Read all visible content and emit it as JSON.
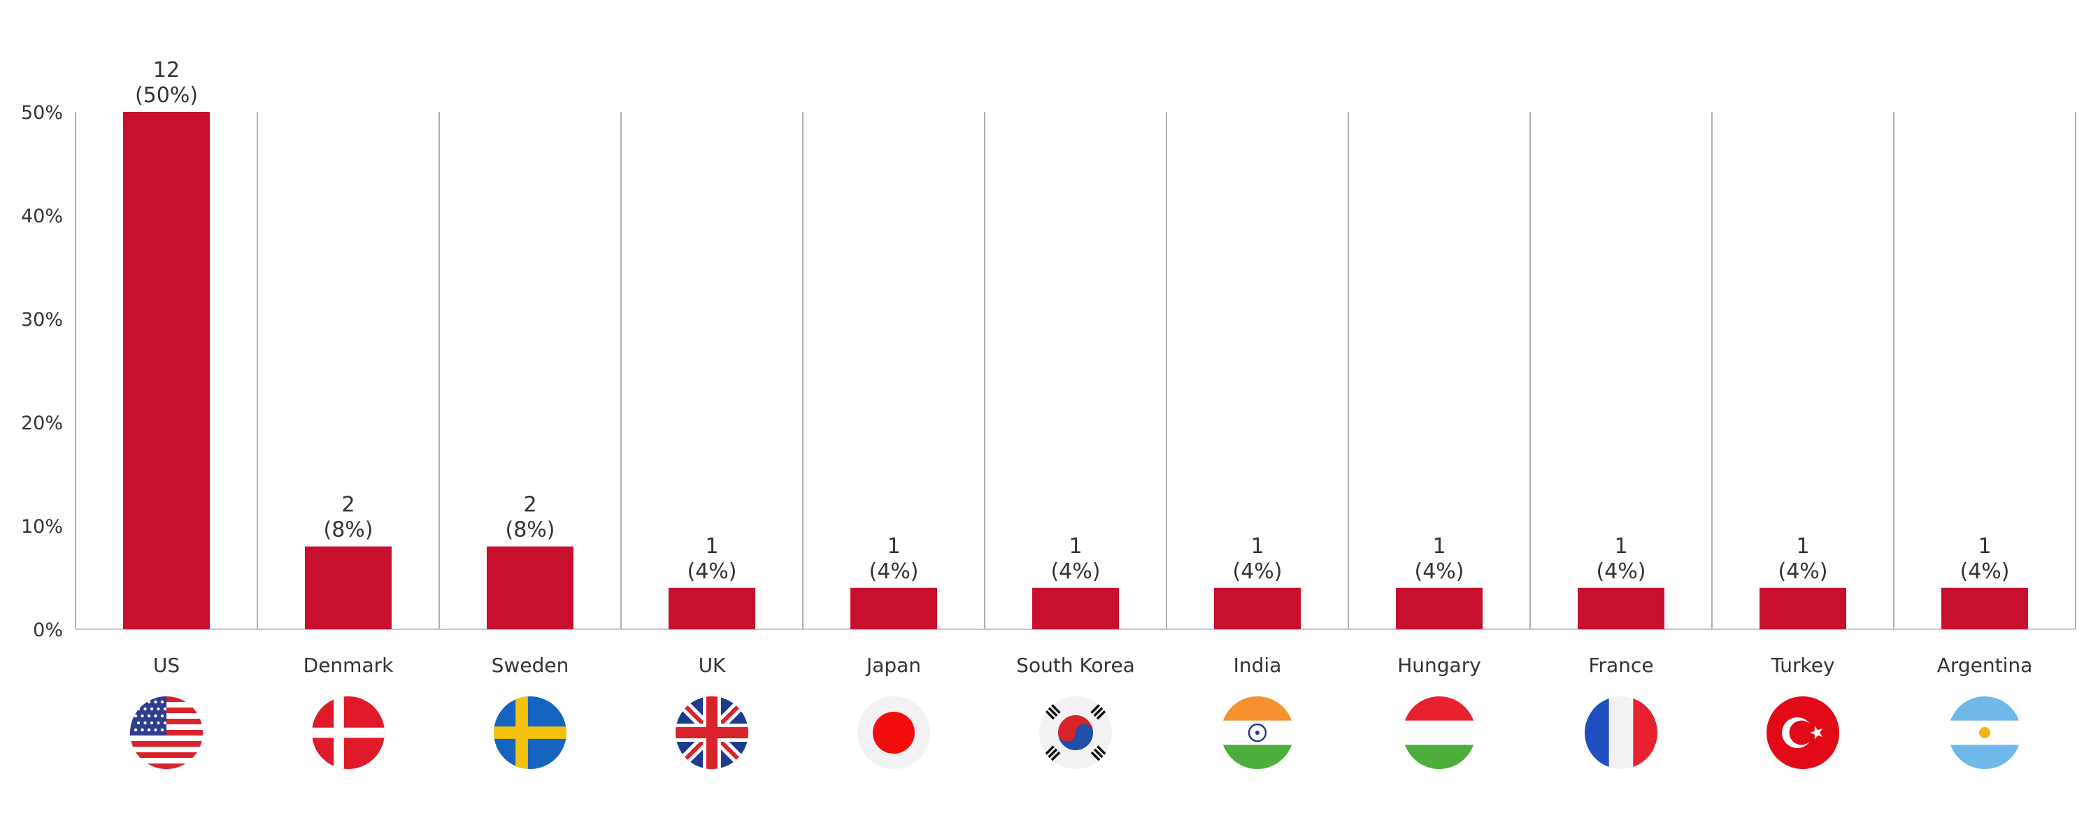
{
  "colors": {
    "bar": "#c8102e",
    "separator": "#b0b0b0",
    "axis": "#c4c4c4"
  },
  "chart_data": {
    "type": "bar",
    "title": "",
    "xlabel": "",
    "ylabel": "",
    "ylim": [
      0,
      50
    ],
    "yticks": [
      0,
      10,
      20,
      30,
      40,
      50
    ],
    "ytick_labels": [
      "0%",
      "10%",
      "20%",
      "30%",
      "40%",
      "50%"
    ],
    "grid": false,
    "categories": [
      "US",
      "Denmark",
      "Sweden",
      "UK",
      "Japan",
      "South Korea",
      "India",
      "Hungary",
      "France",
      "Turkey",
      "Argentina"
    ],
    "values": [
      50,
      8,
      8,
      4,
      4,
      4,
      4,
      4,
      4,
      4,
      4
    ],
    "counts": [
      "12",
      "2",
      "2",
      "1",
      "1",
      "1",
      "1",
      "1",
      "1",
      "1",
      "1"
    ],
    "percent_labels": [
      "(50%)",
      "(8%)",
      "(8%)",
      "(4%)",
      "(4%)",
      "(4%)",
      "(4%)",
      "(4%)",
      "(4%)",
      "(4%)",
      "(4%)"
    ],
    "flag_icons": [
      "us-flag-icon",
      "denmark-flag-icon",
      "sweden-flag-icon",
      "uk-flag-icon",
      "japan-flag-icon",
      "south-korea-flag-icon",
      "india-flag-icon",
      "hungary-flag-icon",
      "france-flag-icon",
      "turkey-flag-icon",
      "argentina-flag-icon"
    ]
  }
}
